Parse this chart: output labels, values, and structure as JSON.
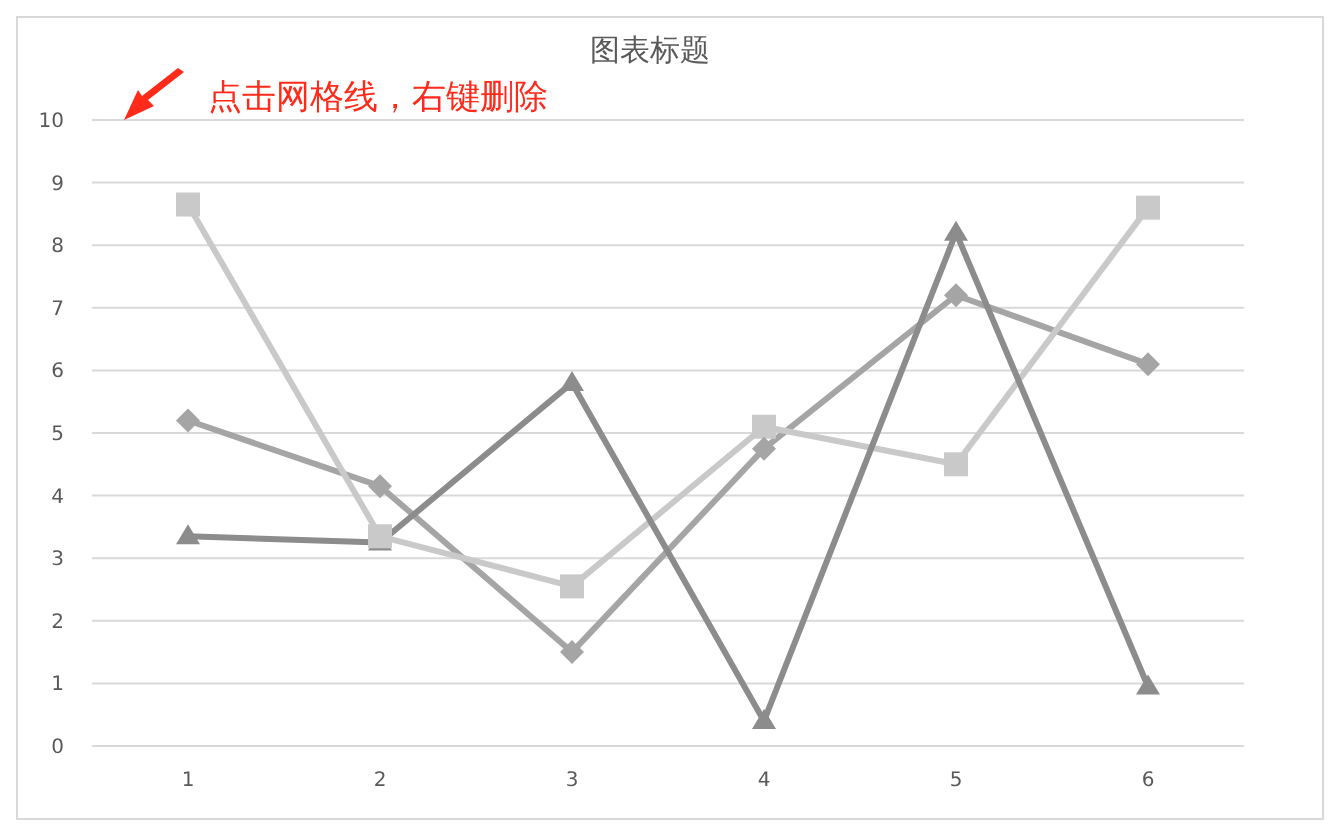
{
  "chart_data": {
    "type": "line",
    "title": "图表标题",
    "annotations": [
      "点击网格线，右键删除"
    ],
    "categories": [
      "1",
      "2",
      "3",
      "4",
      "5",
      "6"
    ],
    "series": [
      {
        "color": "#a5a5a5",
        "marker": "diamond",
        "values": [
          5.2,
          4.15,
          1.5,
          4.75,
          7.2,
          6.1
        ]
      },
      {
        "color": "#c9c9c9",
        "marker": "square",
        "values": [
          8.65,
          3.35,
          2.55,
          5.1,
          4.5,
          8.6
        ]
      },
      {
        "color": "#8c8c8c",
        "marker": "triangle",
        "values": [
          3.35,
          3.25,
          5.8,
          0.4,
          8.2,
          0.95
        ]
      }
    ],
    "ylim": [
      0,
      10
    ],
    "yticks": [
      0,
      1,
      2,
      3,
      4,
      5,
      6,
      7,
      8,
      9,
      10
    ],
    "grid": "y",
    "line_style": "solid"
  }
}
